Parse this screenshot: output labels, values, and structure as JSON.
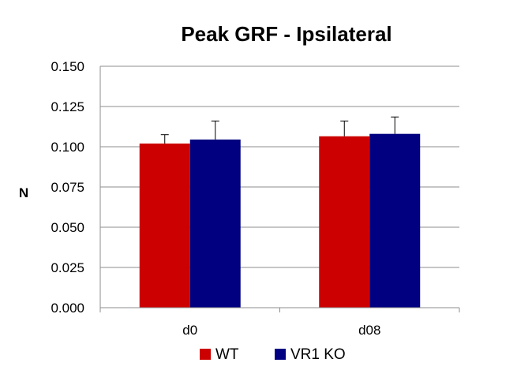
{
  "chart_data": {
    "type": "bar",
    "title": "Peak GRF - Ipsilateral",
    "xlabel": "",
    "ylabel": "N",
    "categories": [
      "d0",
      "d08"
    ],
    "series": [
      {
        "name": "WT",
        "color": "#cc0000",
        "values": [
          0.102,
          0.1065
        ],
        "errors": [
          0.0055,
          0.0095
        ]
      },
      {
        "name": "VR1 KO",
        "color": "#000080",
        "values": [
          0.1045,
          0.108
        ],
        "errors": [
          0.0115,
          0.0105
        ]
      }
    ],
    "ylim": [
      0,
      0.15
    ],
    "yticks": [
      "0.000",
      "0.025",
      "0.050",
      "0.075",
      "0.100",
      "0.125",
      "0.150"
    ],
    "grid": true,
    "legend_position": "bottom"
  }
}
